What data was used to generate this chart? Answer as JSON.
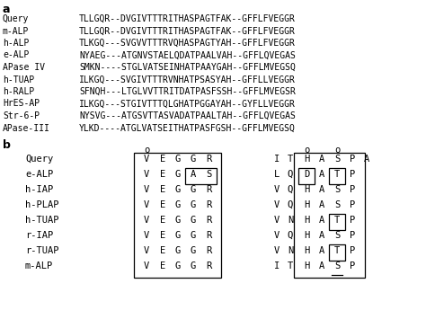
{
  "panel_a_label": "a",
  "panel_b_label": "b",
  "section_a": {
    "rows": [
      {
        "name": "Query",
        "seq": "TLLGQR--DVGIVTTTRITHASPAGTFAK--GFFLFVEGGR"
      },
      {
        "name": "m-ALP",
        "seq": "TLLGQR--DVGIVTTTRITHASPAGTFAK--GFFLFVEGGR"
      },
      {
        "name": "h-ALP",
        "seq": "TLKGQ---SVGVVTTTRVQHASPAGTYAH--GFFLFVEGGR"
      },
      {
        "name": "e-ALP",
        "seq": "NYAEG---ATGNVSTAELQDATPAALVAH--GFFLQVEGAS"
      },
      {
        "name": "APase IV",
        "seq": "SMKN----STGLVATSEINHATPAAYGAH--GFFLMVEGSQ"
      },
      {
        "name": "h-TUAP",
        "seq": "ILKGQ---SVGIVTTTRVNHATPSASYAH--GFFLLVEGGR"
      },
      {
        "name": "h-RALP",
        "seq": "SFNQH---LTGLVVTTRITDATPASFSSH--GFFLMVEGSR"
      },
      {
        "name": "HrES-AP",
        "seq": "ILKGQ---STGIVTTTQLGHATPGGAYAH--GYFLLVEGGR"
      },
      {
        "name": "Str-6-P",
        "seq": "NYSVG---ATGSVTTASVADATPAALTAH--GFFLQVEGAS"
      },
      {
        "name": "APase-III",
        "seq": "YLKD----ATGLVATSEITHATPASFGSH--GFFLMVEGSQ"
      }
    ]
  },
  "section_b": {
    "rows": [
      {
        "name": "Query",
        "left": [
          "V",
          "E",
          "G",
          "G",
          "R"
        ],
        "right": [
          "I",
          "T",
          "H",
          "A",
          "S",
          "P",
          "A"
        ]
      },
      {
        "name": "e-ALP",
        "left": [
          "V",
          "E",
          "G",
          "A",
          "S"
        ],
        "right": [
          "L",
          "Q",
          "D",
          "A",
          "T",
          "P",
          ""
        ]
      },
      {
        "name": "h-IAP",
        "left": [
          "V",
          "E",
          "G",
          "G",
          "R"
        ],
        "right": [
          "V",
          "Q",
          "H",
          "A",
          "S",
          "P",
          ""
        ]
      },
      {
        "name": "h-PLAP",
        "left": [
          "V",
          "E",
          "G",
          "G",
          "R"
        ],
        "right": [
          "V",
          "Q",
          "H",
          "A",
          "S",
          "P",
          ""
        ]
      },
      {
        "name": "h-TUAP",
        "left": [
          "V",
          "E",
          "G",
          "G",
          "R"
        ],
        "right": [
          "V",
          "N",
          "H",
          "A",
          "T",
          "P",
          ""
        ]
      },
      {
        "name": "r-IAP",
        "left": [
          "V",
          "E",
          "G",
          "G",
          "R"
        ],
        "right": [
          "V",
          "Q",
          "H",
          "A",
          "S",
          "P",
          ""
        ]
      },
      {
        "name": "r-TUAP",
        "left": [
          "V",
          "E",
          "G",
          "G",
          "R"
        ],
        "right": [
          "V",
          "N",
          "H",
          "A",
          "T",
          "P",
          ""
        ]
      },
      {
        "name": "m-ALP",
        "left": [
          "V",
          "E",
          "G",
          "G",
          "R"
        ],
        "right": [
          "I",
          "T",
          "H",
          "A",
          "S",
          "P",
          ""
        ]
      }
    ]
  },
  "text_color": "#000000",
  "bg_color": "#ffffff"
}
